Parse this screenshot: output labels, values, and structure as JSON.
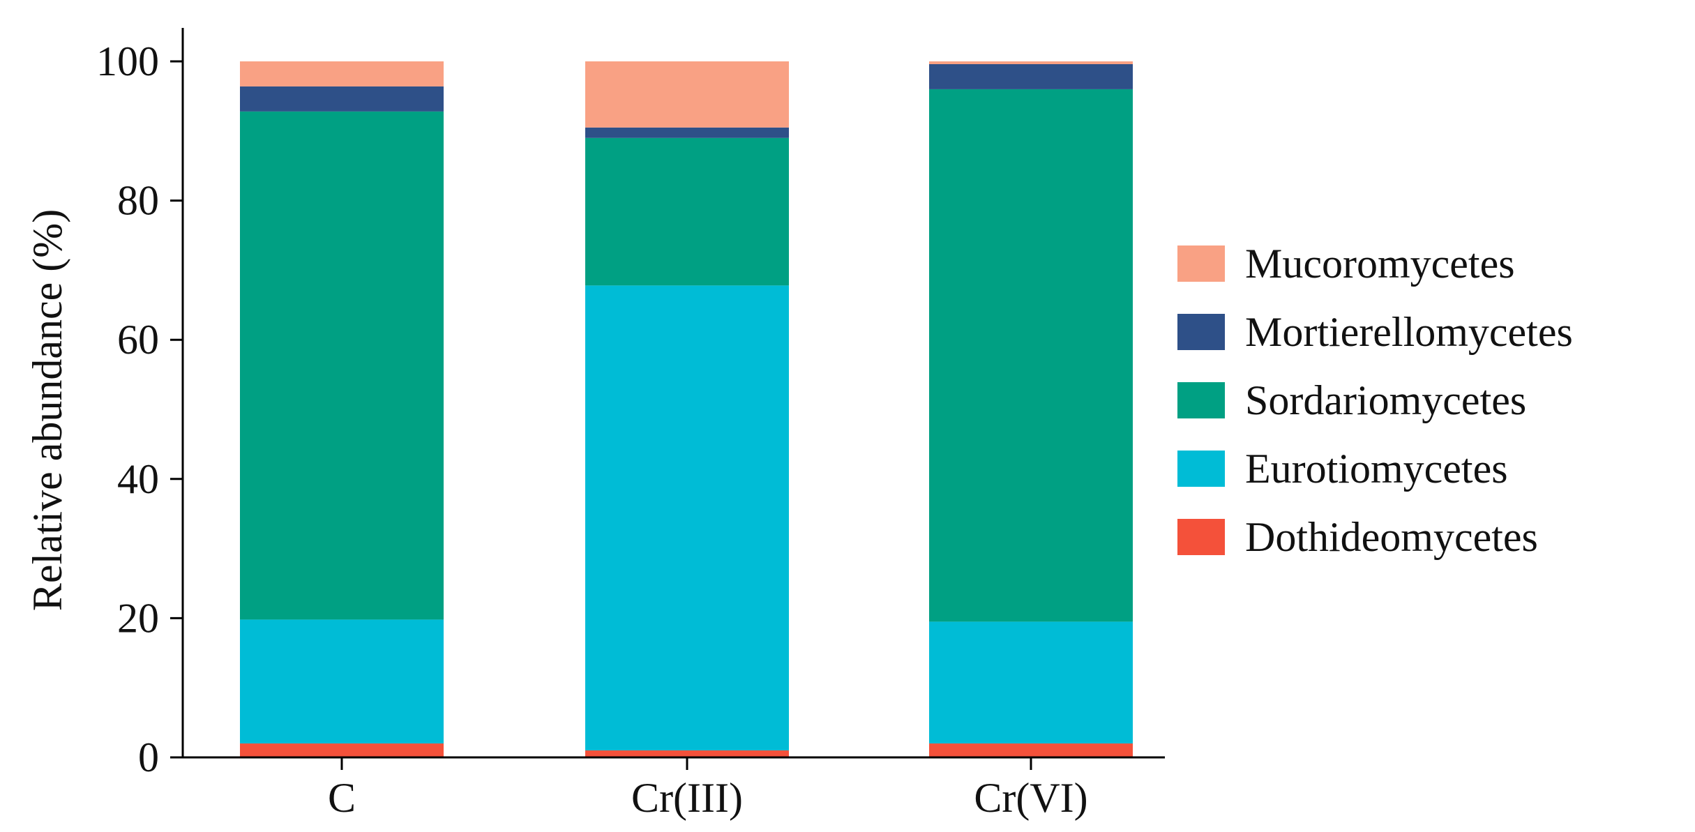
{
  "chart_data": {
    "type": "bar",
    "stacked": true,
    "title": "",
    "xlabel": "",
    "ylabel": "Relative abundance (%)",
    "ylim": [
      0,
      100
    ],
    "yticks": [
      0,
      20,
      40,
      60,
      80,
      100
    ],
    "grid": false,
    "legend_position": "right",
    "categories": [
      "C",
      "Cr(III)",
      "Cr(VI)"
    ],
    "series": [
      {
        "name": "Dothideomycetes",
        "color": "#F4513A",
        "values": [
          2.0,
          1.0,
          2.0
        ]
      },
      {
        "name": "Eurotiomycetes",
        "color": "#00BCD6",
        "values": [
          17.8,
          66.8,
          17.5
        ]
      },
      {
        "name": "Sordariomycetes",
        "color": "#00A083",
        "values": [
          73.0,
          21.2,
          76.5
        ]
      },
      {
        "name": "Mortierellomycetes",
        "color": "#2E5088",
        "values": [
          3.6,
          1.5,
          3.6
        ]
      },
      {
        "name": "Mucoromycetes",
        "color": "#F9A184",
        "values": [
          3.6,
          9.5,
          0.4
        ]
      }
    ]
  }
}
